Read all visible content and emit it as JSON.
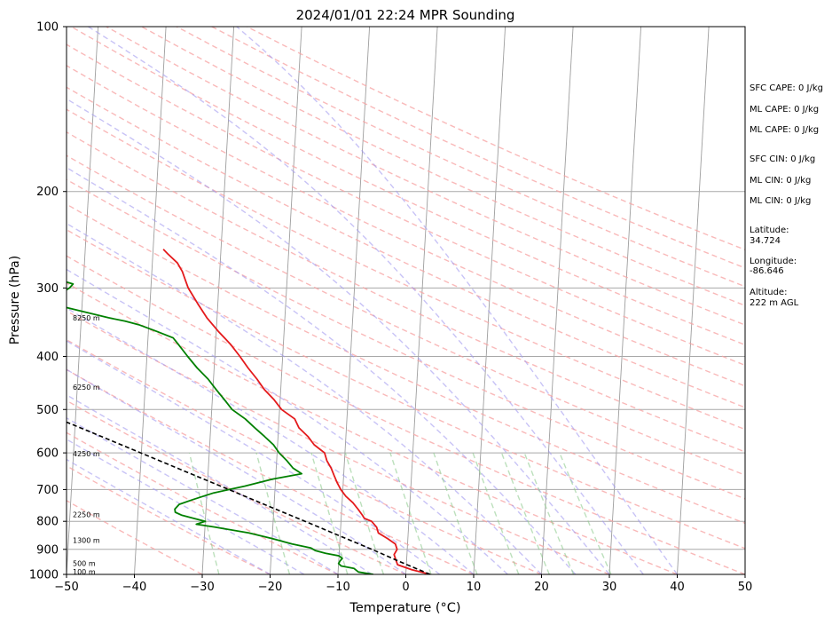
{
  "chart_data": {
    "type": "skewt",
    "title": "2024/01/01 22:24 MPR Sounding",
    "xlabel": "Temperature (°C)",
    "ylabel": "Pressure (hPa)",
    "xlim": [
      -50,
      50
    ],
    "ylim": [
      1000,
      100
    ],
    "x_ticks": [
      -50,
      -40,
      -30,
      -20,
      -10,
      0,
      10,
      20,
      30,
      40,
      50
    ],
    "y_ticks": [
      1000,
      900,
      800,
      700,
      600,
      500,
      400,
      300,
      200,
      100
    ],
    "grid": "pressure lines, skewed isotherms",
    "series": [
      {
        "key": "temperature",
        "color": "#e41a1c",
        "points": [
          [
            1000,
            3.6
          ],
          [
            980,
            0.8
          ],
          [
            960,
            -1.3
          ],
          [
            940,
            -1.6
          ],
          [
            920,
            -1.9
          ],
          [
            900,
            -1.5
          ],
          [
            880,
            -1.8
          ],
          [
            860,
            -3.0
          ],
          [
            840,
            -4.4
          ],
          [
            820,
            -4.7
          ],
          [
            800,
            -5.5
          ],
          [
            790,
            -6.6
          ],
          [
            780,
            -6.9
          ],
          [
            760,
            -7.6
          ],
          [
            740,
            -8.4
          ],
          [
            720,
            -9.5
          ],
          [
            700,
            -10.3
          ],
          [
            680,
            -10.9
          ],
          [
            660,
            -11.4
          ],
          [
            640,
            -11.9
          ],
          [
            620,
            -12.6
          ],
          [
            600,
            -13.0
          ],
          [
            580,
            -14.6
          ],
          [
            560,
            -15.6
          ],
          [
            540,
            -17.0
          ],
          [
            520,
            -17.7
          ],
          [
            500,
            -19.7
          ],
          [
            480,
            -20.9
          ],
          [
            460,
            -22.4
          ],
          [
            440,
            -23.6
          ],
          [
            420,
            -25.0
          ],
          [
            400,
            -26.3
          ],
          [
            380,
            -27.8
          ],
          [
            360,
            -29.7
          ],
          [
            340,
            -31.5
          ],
          [
            320,
            -33.0
          ],
          [
            300,
            -34.5
          ],
          [
            290,
            -35.0
          ],
          [
            280,
            -35.5
          ],
          [
            270,
            -36.3
          ],
          [
            260,
            -37.8
          ],
          [
            255,
            -38.5
          ]
        ]
      },
      {
        "key": "dewpoint",
        "color": "#008000",
        "points": [
          [
            1000,
            -4.8
          ],
          [
            990,
            -7.0
          ],
          [
            975,
            -7.7
          ],
          [
            965,
            -9.6
          ],
          [
            955,
            -10.0
          ],
          [
            945,
            -9.8
          ],
          [
            935,
            -9.5
          ],
          [
            925,
            -10.0
          ],
          [
            915,
            -12.0
          ],
          [
            905,
            -13.5
          ],
          [
            895,
            -14.2
          ],
          [
            880,
            -17.0
          ],
          [
            860,
            -20.0
          ],
          [
            840,
            -23.5
          ],
          [
            820,
            -28.5
          ],
          [
            810,
            -31.3
          ],
          [
            800,
            -30.0
          ],
          [
            790,
            -31.8
          ],
          [
            780,
            -33.5
          ],
          [
            770,
            -34.5
          ],
          [
            760,
            -34.6
          ],
          [
            745,
            -34.0
          ],
          [
            730,
            -32.0
          ],
          [
            710,
            -29.0
          ],
          [
            690,
            -24.5
          ],
          [
            670,
            -20.5
          ],
          [
            655,
            -16.2
          ],
          [
            640,
            -17.5
          ],
          [
            620,
            -18.5
          ],
          [
            600,
            -19.7
          ],
          [
            580,
            -20.6
          ],
          [
            560,
            -22.0
          ],
          [
            540,
            -23.5
          ],
          [
            520,
            -25.0
          ],
          [
            500,
            -27.0
          ],
          [
            480,
            -28.2
          ],
          [
            460,
            -29.5
          ],
          [
            440,
            -30.8
          ],
          [
            420,
            -32.5
          ],
          [
            400,
            -34.0
          ],
          [
            380,
            -35.5
          ],
          [
            370,
            -36.3
          ],
          [
            360,
            -38.8
          ],
          [
            350,
            -41.5
          ],
          [
            345,
            -43.5
          ],
          [
            340,
            -46.0
          ],
          [
            332,
            -49.5
          ],
          [
            325,
            -52.6
          ],
          [
            318,
            -54.0
          ],
          [
            310,
            -53.8
          ],
          [
            300,
            -52.0
          ],
          [
            295,
            -51.5
          ],
          [
            290,
            -53.5
          ],
          [
            285,
            -60.0
          ],
          [
            280,
            -69.5
          ],
          [
            276,
            -83.0
          ],
          [
            276,
            -95.0
          ]
        ]
      },
      {
        "key": "parcel",
        "color": "#000000",
        "points": [
          [
            1000,
            3.6
          ],
          [
            950,
            -0.8
          ],
          [
            900,
            -5.2
          ],
          [
            850,
            -10.1
          ],
          [
            800,
            -15.3
          ],
          [
            750,
            -20.9
          ],
          [
            700,
            -26.8
          ],
          [
            650,
            -33.2
          ],
          [
            600,
            -40.1
          ],
          [
            550,
            -47.6
          ],
          [
            500,
            -55.9
          ],
          [
            450,
            -65.1
          ],
          [
            400,
            -75.4
          ],
          [
            350,
            -87.1
          ],
          [
            300,
            -100.6
          ],
          [
            280,
            -106.6
          ]
        ]
      }
    ],
    "height_labels": [
      {
        "p": 988,
        "label": "100 m"
      },
      {
        "p": 955,
        "label": "500 m"
      },
      {
        "p": 866,
        "label": "1300 m"
      },
      {
        "p": 778,
        "label": "2250 m"
      },
      {
        "p": 602,
        "label": "4250 m"
      },
      {
        "p": 455,
        "label": "6250 m"
      },
      {
        "p": 340,
        "label": "8250 m"
      }
    ],
    "side_info": [
      "SFC CAPE: 0 J/kg",
      "ML CAPE: 0 J/kg",
      "ML CAPE: 0 J/kg",
      "SFC CIN: 0 J/kg",
      "ML CIN: 0 J/kg",
      "ML CIN: 0 J/kg",
      "Latitude:",
      "34.724",
      "Longitude:",
      "-86.646",
      "Altitude:",
      "222 m AGL"
    ]
  }
}
